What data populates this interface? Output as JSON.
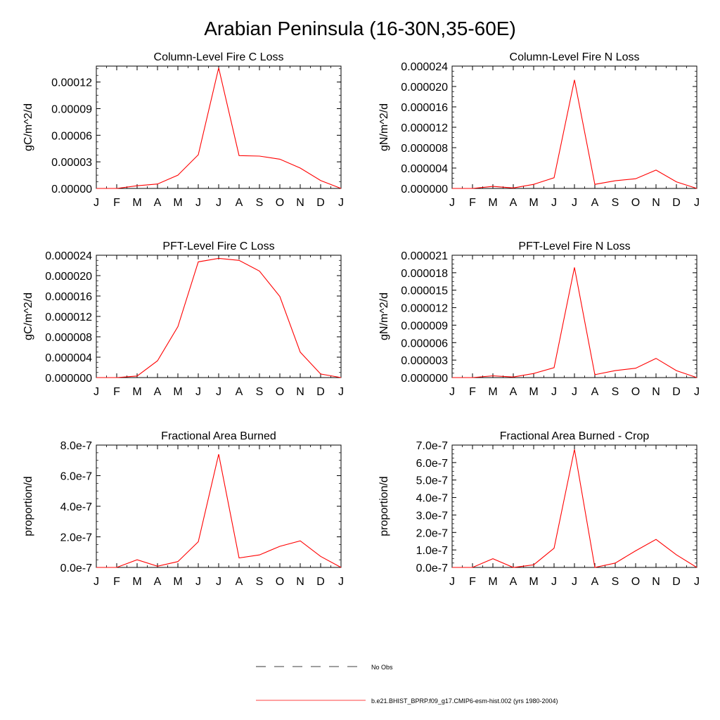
{
  "figure_title": "Arabian Peninsula (16-30N,35-60E)",
  "legend": {
    "items": [
      {
        "label": "No Obs",
        "style": "dashed",
        "color": "#000000"
      },
      {
        "label": "b.e21.BHIST_BPRP.f09_g17.CMIP6-esm-hist.002 (yrs 1980-2004)",
        "style": "solid",
        "color": "#ff0000"
      }
    ]
  },
  "colors": {
    "series": "#ff0000",
    "axis": "#000000"
  },
  "chart_data": [
    {
      "type": "line",
      "title": "Column-Level Fire C Loss",
      "ylabel": "gC/m^2/d",
      "categories": [
        "J",
        "F",
        "M",
        "A",
        "M",
        "J",
        "J",
        "A",
        "S",
        "O",
        "N",
        "D",
        "J"
      ],
      "ylim": [
        0,
        0.000138
      ],
      "yticks": [
        0,
        3e-05,
        6e-05,
        9e-05,
        0.00012
      ],
      "ytick_labels": [
        "0.00000",
        "0.00003",
        "0.00006",
        "0.00009",
        "0.00012"
      ],
      "series": [
        {
          "name": "b.e21.BHIST_BPRP.f09_g17.CMIP6-esm-hist.002 (yrs 1980-2004)",
          "values": [
            0,
            0,
            3e-06,
            5e-06,
            1.5e-05,
            3.8e-05,
            0.000136,
            3.7e-05,
            3.65e-05,
            3.3e-05,
            2.3e-05,
            9e-06,
            0
          ]
        }
      ]
    },
    {
      "type": "line",
      "title": "Column-Level Fire N Loss",
      "ylabel": "gN/m^2/d",
      "categories": [
        "J",
        "F",
        "M",
        "A",
        "M",
        "J",
        "J",
        "A",
        "S",
        "O",
        "N",
        "D",
        "J"
      ],
      "ylim": [
        0,
        2.4e-05
      ],
      "yticks": [
        0,
        4e-06,
        8e-06,
        1.2e-05,
        1.6e-05,
        2e-05,
        2.4e-05
      ],
      "ytick_labels": [
        "0.000000",
        "0.000004",
        "0.000008",
        "0.000012",
        "0.000016",
        "0.000020",
        "0.000024"
      ],
      "series": [
        {
          "name": "b.e21.BHIST_BPRP.f09_g17.CMIP6-esm-hist.002 (yrs 1980-2004)",
          "values": [
            0,
            0,
            4e-07,
            1e-07,
            8e-07,
            2.1e-06,
            2.13e-05,
            8e-07,
            1.5e-06,
            1.9e-06,
            3.6e-06,
            1.3e-06,
            0
          ]
        }
      ]
    },
    {
      "type": "line",
      "title": "PFT-Level Fire C Loss",
      "ylabel": "gC/m^2/d",
      "categories": [
        "J",
        "F",
        "M",
        "A",
        "M",
        "J",
        "J",
        "A",
        "S",
        "O",
        "N",
        "D",
        "J"
      ],
      "ylim": [
        0,
        2.4e-05
      ],
      "yticks": [
        0,
        4e-06,
        8e-06,
        1.2e-05,
        1.6e-05,
        2e-05,
        2.4e-05
      ],
      "ytick_labels": [
        "0.000000",
        "0.000004",
        "0.000008",
        "0.000012",
        "0.000016",
        "0.000020",
        "0.000024"
      ],
      "series": [
        {
          "name": "b.e21.BHIST_BPRP.f09_g17.CMIP6-esm-hist.002 (yrs 1980-2004)",
          "values": [
            0,
            0,
            3e-07,
            3.3e-06,
            1e-05,
            2.27e-05,
            2.34e-05,
            2.3e-05,
            2.09e-05,
            1.59e-05,
            5e-06,
            7e-07,
            0
          ]
        }
      ]
    },
    {
      "type": "line",
      "title": "PFT-Level Fire N Loss",
      "ylabel": "gN/m^2/d",
      "categories": [
        "J",
        "F",
        "M",
        "A",
        "M",
        "J",
        "J",
        "A",
        "S",
        "O",
        "N",
        "D",
        "J"
      ],
      "ylim": [
        0,
        2.1e-05
      ],
      "yticks": [
        0,
        3e-06,
        6e-06,
        9e-06,
        1.2e-05,
        1.5e-05,
        1.8e-05,
        2.1e-05
      ],
      "ytick_labels": [
        "0.000000",
        "0.000003",
        "0.000006",
        "0.000009",
        "0.000012",
        "0.000015",
        "0.000018",
        "0.000021"
      ],
      "series": [
        {
          "name": "b.e21.BHIST_BPRP.f09_g17.CMIP6-esm-hist.002 (yrs 1980-2004)",
          "values": [
            0,
            0,
            3e-07,
            1e-07,
            7e-07,
            1.7e-06,
            1.89e-05,
            5e-07,
            1.2e-06,
            1.6e-06,
            3.3e-06,
            1.2e-06,
            0
          ]
        }
      ]
    },
    {
      "type": "line",
      "title": "Fractional Area Burned",
      "ylabel": "proportion/d",
      "categories": [
        "J",
        "F",
        "M",
        "A",
        "M",
        "J",
        "J",
        "A",
        "S",
        "O",
        "N",
        "D",
        "J"
      ],
      "ylim": [
        0,
        8e-07
      ],
      "yticks": [
        0,
        2e-07,
        4e-07,
        6e-07,
        8e-07
      ],
      "ytick_labels": [
        "0.0e-7",
        "2.0e-7",
        "4.0e-7",
        "6.0e-7",
        "8.0e-7"
      ],
      "series": [
        {
          "name": "b.e21.BHIST_BPRP.f09_g17.CMIP6-esm-hist.002 (yrs 1980-2004)",
          "values": [
            0,
            0,
            5e-08,
            8e-09,
            3.8e-08,
            1.68e-07,
            7.4e-07,
            6.2e-08,
            8.2e-08,
            1.38e-07,
            1.74e-07,
            7.2e-08,
            0
          ]
        }
      ]
    },
    {
      "type": "line",
      "title": "Fractional Area Burned - Crop",
      "ylabel": "proportion/d",
      "categories": [
        "J",
        "F",
        "M",
        "A",
        "M",
        "J",
        "J",
        "A",
        "S",
        "O",
        "N",
        "D",
        "J"
      ],
      "ylim": [
        0,
        7e-07
      ],
      "yticks": [
        0,
        1e-07,
        2e-07,
        3e-07,
        4e-07,
        5e-07,
        6e-07,
        7e-07
      ],
      "ytick_labels": [
        "0.0e-7",
        "1.0e-7",
        "2.0e-7",
        "3.0e-7",
        "4.0e-7",
        "5.0e-7",
        "6.0e-7",
        "7.0e-7"
      ],
      "series": [
        {
          "name": "b.e21.BHIST_BPRP.f09_g17.CMIP6-esm-hist.002 (yrs 1980-2004)",
          "values": [
            0,
            0,
            5e-08,
            0,
            1.5e-08,
            1.1e-07,
            6.75e-07,
            0,
            2.5e-08,
            9.5e-08,
            1.6e-07,
            7.2e-08,
            0
          ]
        }
      ]
    }
  ]
}
